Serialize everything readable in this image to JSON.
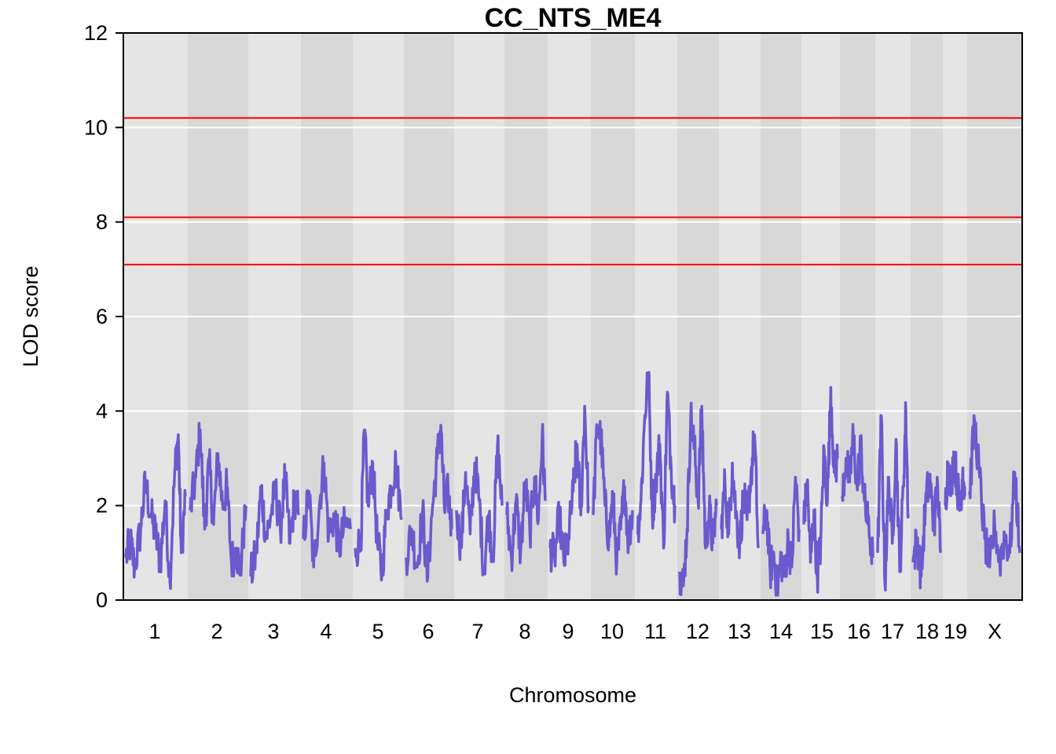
{
  "chart_data": {
    "type": "line",
    "title": "CC_NTS_ME4",
    "xlabel": "Chromosome",
    "ylabel": "LOD score",
    "ylim": [
      0,
      12
    ],
    "yticks": [
      0,
      2,
      4,
      6,
      8,
      10,
      12
    ],
    "grid": true,
    "series_color": "#6a5acd",
    "threshold_color": "#ff0000",
    "thresholds": [
      7.1,
      8.1,
      10.2
    ],
    "band_colors": [
      "#e5e5e5",
      "#d8d8d8"
    ],
    "chromosomes": [
      {
        "label": "1",
        "peaks": [
          [
            0.0,
            0.9
          ],
          [
            0.08,
            1.2
          ],
          [
            0.15,
            0.7
          ],
          [
            0.25,
            1.5
          ],
          [
            0.33,
            2.5
          ],
          [
            0.42,
            1.8
          ],
          [
            0.5,
            1.4
          ],
          [
            0.58,
            0.8
          ],
          [
            0.66,
            2.1
          ],
          [
            0.74,
            0.4
          ],
          [
            0.82,
            2.7
          ],
          [
            0.88,
            3.5
          ],
          [
            0.93,
            1.0
          ],
          [
            1.0,
            2.2
          ]
        ]
      },
      {
        "label": "2",
        "peaks": [
          [
            0.0,
            1.9
          ],
          [
            0.1,
            2.6
          ],
          [
            0.18,
            3.6
          ],
          [
            0.26,
            1.5
          ],
          [
            0.34,
            2.9
          ],
          [
            0.42,
            1.6
          ],
          [
            0.5,
            3.1
          ],
          [
            0.58,
            2.0
          ],
          [
            0.66,
            2.4
          ],
          [
            0.74,
            0.8
          ],
          [
            0.82,
            1.1
          ],
          [
            0.9,
            0.6
          ],
          [
            1.0,
            2.0
          ]
        ]
      },
      {
        "label": "3",
        "peaks": [
          [
            0.0,
            0.5
          ],
          [
            0.12,
            1.0
          ],
          [
            0.22,
            2.4
          ],
          [
            0.32,
            1.3
          ],
          [
            0.42,
            1.8
          ],
          [
            0.52,
            2.3
          ],
          [
            0.62,
            1.5
          ],
          [
            0.72,
            2.6
          ],
          [
            0.82,
            1.2
          ],
          [
            0.92,
            2.2
          ],
          [
            1.0,
            1.8
          ]
        ]
      },
      {
        "label": "4",
        "peaks": [
          [
            0.0,
            1.3
          ],
          [
            0.12,
            2.3
          ],
          [
            0.22,
            0.7
          ],
          [
            0.34,
            2.0
          ],
          [
            0.44,
            2.9
          ],
          [
            0.54,
            1.4
          ],
          [
            0.66,
            1.8
          ],
          [
            0.76,
            1.1
          ],
          [
            0.88,
            1.6
          ],
          [
            1.0,
            1.5
          ]
        ]
      },
      {
        "label": "5",
        "peaks": [
          [
            0.0,
            1.1
          ],
          [
            0.12,
            1.2
          ],
          [
            0.2,
            3.6
          ],
          [
            0.28,
            2.0
          ],
          [
            0.38,
            2.9
          ],
          [
            0.48,
            1.2
          ],
          [
            0.58,
            0.6
          ],
          [
            0.68,
            1.9
          ],
          [
            0.78,
            2.4
          ],
          [
            0.88,
            2.9
          ],
          [
            1.0,
            1.7
          ]
        ]
      },
      {
        "label": "6",
        "peaks": [
          [
            0.0,
            0.9
          ],
          [
            0.12,
            1.5
          ],
          [
            0.24,
            0.7
          ],
          [
            0.36,
            1.9
          ],
          [
            0.46,
            0.4
          ],
          [
            0.58,
            2.0
          ],
          [
            0.68,
            3.0
          ],
          [
            0.76,
            3.7
          ],
          [
            0.84,
            1.9
          ],
          [
            0.92,
            2.3
          ],
          [
            1.0,
            1.5
          ]
        ]
      },
      {
        "label": "7",
        "peaks": [
          [
            0.0,
            1.9
          ],
          [
            0.1,
            1.1
          ],
          [
            0.2,
            2.7
          ],
          [
            0.3,
            1.4
          ],
          [
            0.4,
            2.9
          ],
          [
            0.5,
            2.1
          ],
          [
            0.6,
            0.6
          ],
          [
            0.7,
            1.8
          ],
          [
            0.8,
            0.9
          ],
          [
            0.9,
            3.3
          ],
          [
            1.0,
            2.0
          ]
        ]
      },
      {
        "label": "8",
        "peaks": [
          [
            0.0,
            1.8
          ],
          [
            0.12,
            0.9
          ],
          [
            0.24,
            2.1
          ],
          [
            0.36,
            1.0
          ],
          [
            0.48,
            2.5
          ],
          [
            0.6,
            1.4
          ],
          [
            0.72,
            2.6
          ],
          [
            0.82,
            1.7
          ],
          [
            0.92,
            3.5
          ],
          [
            1.0,
            2.1
          ]
        ]
      },
      {
        "label": "9",
        "peaks": [
          [
            0.0,
            1.1
          ],
          [
            0.12,
            0.9
          ],
          [
            0.24,
            1.8
          ],
          [
            0.36,
            0.8
          ],
          [
            0.48,
            1.3
          ],
          [
            0.6,
            2.3
          ],
          [
            0.7,
            3.3
          ],
          [
            0.8,
            1.8
          ],
          [
            0.9,
            4.1
          ],
          [
            1.0,
            2.0
          ]
        ]
      },
      {
        "label": "10",
        "peaks": [
          [
            0.0,
            1.8
          ],
          [
            0.1,
            3.7
          ],
          [
            0.2,
            3.4
          ],
          [
            0.3,
            2.0
          ],
          [
            0.4,
            1.3
          ],
          [
            0.5,
            2.2
          ],
          [
            0.6,
            0.8
          ],
          [
            0.7,
            1.5
          ],
          [
            0.8,
            2.4
          ],
          [
            0.9,
            1.2
          ],
          [
            1.0,
            1.9
          ]
        ]
      },
      {
        "label": "11",
        "peaks": [
          [
            0.0,
            1.4
          ],
          [
            0.1,
            2.1
          ],
          [
            0.2,
            3.9
          ],
          [
            0.3,
            4.8
          ],
          [
            0.4,
            1.8
          ],
          [
            0.5,
            2.6
          ],
          [
            0.6,
            3.3
          ],
          [
            0.7,
            1.1
          ],
          [
            0.8,
            4.4
          ],
          [
            0.9,
            2.8
          ],
          [
            1.0,
            2.0
          ]
        ]
      },
      {
        "label": "12",
        "peaks": [
          [
            0.0,
            0.6
          ],
          [
            0.1,
            0.3
          ],
          [
            0.2,
            1.5
          ],
          [
            0.3,
            3.9
          ],
          [
            0.4,
            3.2
          ],
          [
            0.5,
            2.1
          ],
          [
            0.6,
            4.1
          ],
          [
            0.7,
            1.1
          ],
          [
            0.8,
            1.9
          ],
          [
            0.9,
            1.2
          ],
          [
            1.0,
            2.0
          ]
        ]
      },
      {
        "label": "13",
        "peaks": [
          [
            0.0,
            1.5
          ],
          [
            0.1,
            2.5
          ],
          [
            0.2,
            1.4
          ],
          [
            0.3,
            2.9
          ],
          [
            0.4,
            1.8
          ],
          [
            0.5,
            1.2
          ],
          [
            0.6,
            2.2
          ],
          [
            0.7,
            1.7
          ],
          [
            0.8,
            2.6
          ],
          [
            0.9,
            3.5
          ],
          [
            1.0,
            1.1
          ]
        ]
      },
      {
        "label": "14",
        "peaks": [
          [
            0.0,
            1.4
          ],
          [
            0.1,
            1.9
          ],
          [
            0.2,
            0.6
          ],
          [
            0.3,
            1.0
          ],
          [
            0.4,
            0.2
          ],
          [
            0.5,
            0.9
          ],
          [
            0.6,
            0.5
          ],
          [
            0.7,
            1.3
          ],
          [
            0.8,
            0.7
          ],
          [
            0.9,
            2.6
          ],
          [
            1.0,
            1.5
          ]
        ]
      },
      {
        "label": "15",
        "peaks": [
          [
            0.0,
            1.6
          ],
          [
            0.1,
            2.5
          ],
          [
            0.2,
            0.8
          ],
          [
            0.3,
            1.9
          ],
          [
            0.4,
            0.5
          ],
          [
            0.5,
            1.2
          ],
          [
            0.6,
            3.2
          ],
          [
            0.7,
            2.1
          ],
          [
            0.8,
            4.5
          ],
          [
            0.9,
            2.7
          ],
          [
            1.0,
            3.0
          ]
        ]
      },
      {
        "label": "16",
        "peaks": [
          [
            0.0,
            2.2
          ],
          [
            0.12,
            3.0
          ],
          [
            0.24,
            2.5
          ],
          [
            0.36,
            3.5
          ],
          [
            0.48,
            2.4
          ],
          [
            0.6,
            3.3
          ],
          [
            0.72,
            2.1
          ],
          [
            0.84,
            1.6
          ],
          [
            1.0,
            0.9
          ]
        ]
      },
      {
        "label": "17",
        "peaks": [
          [
            0.0,
            1.0
          ],
          [
            0.12,
            3.9
          ],
          [
            0.24,
            0.3
          ],
          [
            0.36,
            2.6
          ],
          [
            0.48,
            1.2
          ],
          [
            0.6,
            3.4
          ],
          [
            0.72,
            0.6
          ],
          [
            0.84,
            2.4
          ],
          [
            0.92,
            4.0
          ],
          [
            1.0,
            1.8
          ]
        ]
      },
      {
        "label": "18",
        "peaks": [
          [
            0.0,
            0.8
          ],
          [
            0.15,
            1.3
          ],
          [
            0.3,
            0.5
          ],
          [
            0.45,
            2.0
          ],
          [
            0.6,
            2.6
          ],
          [
            0.75,
            1.6
          ],
          [
            0.9,
            2.4
          ],
          [
            1.0,
            1.0
          ]
        ]
      },
      {
        "label": "19",
        "peaks": [
          [
            0.0,
            2.0
          ],
          [
            0.15,
            2.9
          ],
          [
            0.3,
            2.4
          ],
          [
            0.45,
            3.1
          ],
          [
            0.6,
            2.5
          ],
          [
            0.75,
            1.9
          ],
          [
            0.9,
            2.8
          ],
          [
            1.0,
            2.2
          ]
        ]
      },
      {
        "label": "X",
        "peaks": [
          [
            0.0,
            2.3
          ],
          [
            0.1,
            3.8
          ],
          [
            0.2,
            2.6
          ],
          [
            0.3,
            1.3
          ],
          [
            0.4,
            0.7
          ],
          [
            0.5,
            1.6
          ],
          [
            0.6,
            0.8
          ],
          [
            0.7,
            1.4
          ],
          [
            0.8,
            1.0
          ],
          [
            0.9,
            2.7
          ],
          [
            1.0,
            1.0
          ]
        ]
      }
    ]
  }
}
